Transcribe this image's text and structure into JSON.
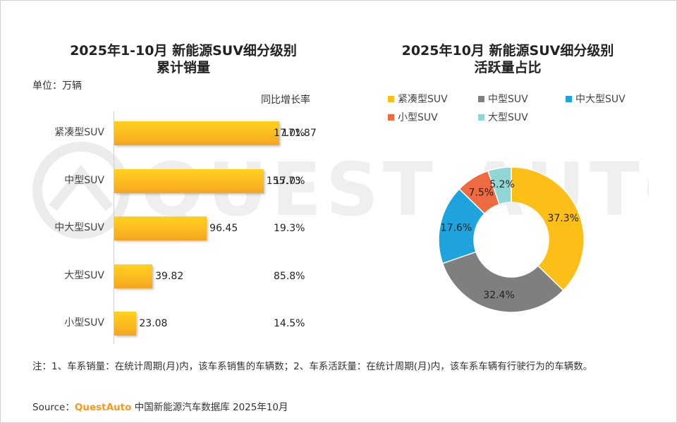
{
  "watermark": {
    "text": "QUEST AUTO"
  },
  "left_title_line1": "2025年1-10月 新能源SUV细分级别",
  "left_title_line2": "累计销量",
  "right_title_line1": "2025年10月 新能源SUV细分级别",
  "right_title_line2": "活跃量占比",
  "unit_label": "单位：万辆",
  "growth_header": "同比增长率",
  "note": "注：1、车系销量：在统计周期(月)内，该车系销售的车辆数；2、车系活跃量：在统计周期(月)内，该车系车辆有行驶行为的车辆数。",
  "source": {
    "prefix": "Source：",
    "brand": "QuestAuto",
    "suffix": " 中国新能源汽车数据库 2025年10月"
  },
  "chart_data": [
    {
      "type": "bar",
      "orientation": "horizontal",
      "title": "2025年1-10月 新能源SUV细分级别累计销量",
      "unit": "单位：万辆",
      "categories": [
        "紧凑型SUV",
        "中型SUV",
        "中大型SUV",
        "大型SUV",
        "小型SUV"
      ],
      "values": [
        171.87,
        155.73,
        96.45,
        39.82,
        23.08
      ],
      "value_labels": [
        "171.87",
        "155.73",
        "96.45",
        "39.82",
        "23.08"
      ],
      "growth_header": "同比增长率",
      "growth_labels": [
        "17.0%",
        "17.0%",
        "19.3%",
        "85.8%",
        "14.5%"
      ],
      "xlim": [
        0,
        500
      ],
      "color": "#fbb820"
    },
    {
      "type": "pie",
      "variant": "donut",
      "title": "2025年10月 新能源SUV细分级别活跃量占比",
      "legend_position": "top",
      "slices": [
        {
          "name": "紧凑型SUV",
          "value": 37.3,
          "label": "37.3%",
          "color": "#fbbf18"
        },
        {
          "name": "中型SUV",
          "value": 32.4,
          "label": "32.4%",
          "color": "#7f7f7f"
        },
        {
          "name": "中大型SUV",
          "value": 17.6,
          "label": "17.6%",
          "color": "#1fa3dc"
        },
        {
          "name": "小型SUV",
          "value": 7.5,
          "label": "7.5%",
          "color": "#ee6a41"
        },
        {
          "name": "大型SUV",
          "value": 5.2,
          "label": "5.2%",
          "color": "#8fd6d4"
        }
      ],
      "legend_order": [
        "紧凑型SUV",
        "中型SUV",
        "中大型SUV",
        "小型SUV",
        "大型SUV"
      ]
    }
  ]
}
